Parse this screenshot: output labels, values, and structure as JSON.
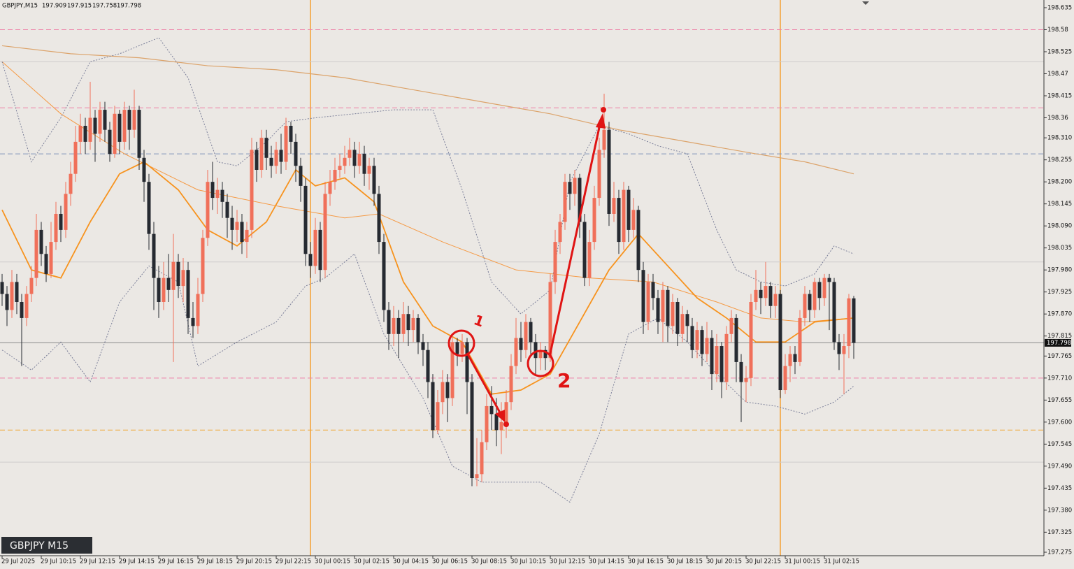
{
  "chart_data": {
    "type": "candlestick",
    "symbol": "GBPJPY,M15",
    "badge": "GBPJPY M15",
    "up_color": "#f0705a",
    "down_color": "#262a31",
    "ylim": [
      197.275,
      198.635
    ],
    "yticks": [
      198.635,
      198.58,
      198.525,
      198.47,
      198.415,
      198.36,
      {
        "value": 198.31,
        "label": "198.310"
      },
      198.255,
      {
        "value": 198.2,
        "label": "198.200"
      },
      198.145,
      {
        "value": 198.09,
        "label": "198.090"
      },
      198.035,
      {
        "value": 197.98,
        "label": "197.980"
      },
      197.925,
      {
        "value": 197.87,
        "label": "197.870"
      },
      197.815,
      197.765,
      {
        "value": 197.71,
        "label": "197.710"
      },
      197.655,
      {
        "value": 197.6,
        "label": "197.600"
      },
      197.545,
      {
        "value": 197.49,
        "label": "197.490"
      },
      197.435,
      {
        "value": 197.38,
        "label": "197.380"
      },
      197.325,
      197.275
    ],
    "grid": false,
    "period_separators": true,
    "separator_color": "#f5a033",
    "categories": [
      "29 Jul 2025",
      null,
      null,
      null,
      null,
      null,
      null,
      null,
      "29 Jul 10:15",
      null,
      null,
      null,
      null,
      null,
      null,
      null,
      "29 Jul 12:15",
      null,
      null,
      null,
      null,
      null,
      null,
      null,
      "29 Jul 14:15",
      null,
      null,
      null,
      null,
      null,
      null,
      null,
      "29 Jul 16:15",
      null,
      null,
      null,
      null,
      null,
      null,
      null,
      "29 Jul 18:15",
      null,
      null,
      null,
      null,
      null,
      null,
      null,
      "29 Jul 20:15",
      null,
      null,
      null,
      null,
      null,
      null,
      null,
      "29 Jul 22:15",
      null,
      null,
      null,
      null,
      null,
      null,
      null,
      "30 Jul 00:15",
      null,
      null,
      null,
      null,
      null,
      null,
      null,
      "30 Jul 02:15",
      null,
      null,
      null,
      null,
      null,
      null,
      null,
      "30 Jul 04:15",
      null,
      null,
      null,
      null,
      null,
      null,
      null,
      "30 Jul 06:15",
      null,
      null,
      null,
      null,
      null,
      null,
      null,
      "30 Jul 08:15",
      null,
      null,
      null,
      null,
      null,
      null,
      null,
      "30 Jul 10:15",
      null,
      null,
      null,
      null,
      null,
      null,
      null,
      "30 Jul 12:15",
      null,
      null,
      null,
      null,
      null,
      null,
      null,
      "30 Jul 14:15",
      null,
      null,
      null,
      null,
      null,
      null,
      null,
      "30 Jul 16:15",
      null,
      null,
      null,
      null,
      null,
      null,
      null,
      "30 Jul 18:15",
      null,
      null,
      null,
      null,
      null,
      null,
      null,
      "30 Jul 20:15",
      null,
      null,
      null,
      null,
      null,
      null,
      null,
      "30 Jul 22:15",
      null,
      null,
      null,
      null,
      null,
      null,
      null,
      "31 Jul 00:15",
      null,
      null,
      null,
      null,
      null,
      null,
      null,
      "31 Jul 02:15",
      null,
      null,
      null,
      null,
      null,
      null
    ],
    "open": [
      197.95,
      197.92,
      197.88,
      197.95,
      197.9,
      197.86,
      197.92,
      197.96,
      198.08,
      198.02,
      197.97,
      198.05,
      198.12,
      198.08,
      198.17,
      198.22,
      198.3,
      198.34,
      198.3,
      198.36,
      198.32,
      198.38,
      198.33,
      198.27,
      198.37,
      198.3,
      198.38,
      198.33,
      198.38,
      198.26,
      198.2,
      198.07,
      197.96,
      197.9,
      197.96,
      197.93,
      198.0,
      197.94,
      197.98,
      197.86,
      197.84,
      197.92,
      198.06,
      198.2,
      198.16,
      198.18,
      198.15,
      198.11,
      198.08,
      198.1,
      198.05,
      198.08,
      198.28,
      198.23,
      198.31,
      198.26,
      198.24,
      198.28,
      198.25,
      198.34,
      198.3,
      198.24,
      198.19,
      198.02,
      197.99,
      198.08,
      197.98,
      198.17,
      198.2,
      198.23,
      198.24,
      198.26,
      198.28,
      198.24,
      198.27,
      198.22,
      198.24,
      198.17,
      198.05,
      197.88,
      197.82,
      197.86,
      197.82,
      197.87,
      197.83,
      197.86,
      197.8,
      197.78,
      197.7,
      197.58,
      197.65,
      197.7,
      197.66,
      197.8,
      197.77,
      197.8,
      197.7,
      197.46,
      197.47,
      197.55,
      197.64,
      197.62,
      197.58,
      197.6,
      197.65,
      197.74,
      197.81,
      197.78,
      197.85,
      197.8,
      197.76,
      197.78,
      197.76,
      197.95,
      198.05,
      198.1,
      198.2,
      198.17,
      198.21,
      198.1,
      197.96,
      198.05,
      198.16,
      198.28,
      198.33,
      198.12,
      198.16,
      198.05,
      198.18,
      198.08,
      198.13,
      197.98,
      197.85,
      197.95,
      197.91,
      197.85,
      197.93,
      197.84,
      197.9,
      197.82,
      197.87,
      197.84,
      197.78,
      197.83,
      197.77,
      197.81,
      197.72,
      197.79,
      197.7,
      197.82,
      197.86,
      197.75,
      197.7,
      197.71,
      197.9,
      197.93,
      197.91,
      197.94,
      197.89,
      197.92,
      197.68,
      197.74,
      197.77,
      197.75,
      197.86,
      197.92,
      197.88,
      197.95,
      197.91,
      197.96,
      197.95,
      197.8,
      197.77,
      197.79,
      197.909
    ],
    "high": [
      197.97,
      197.94,
      197.98,
      197.97,
      197.92,
      197.94,
      197.99,
      198.12,
      198.1,
      198.04,
      198.1,
      198.15,
      198.14,
      198.2,
      198.25,
      198.34,
      198.37,
      198.36,
      198.45,
      198.38,
      198.4,
      198.4,
      198.35,
      198.39,
      198.38,
      198.4,
      198.39,
      198.43,
      198.39,
      198.28,
      198.22,
      198.1,
      197.99,
      198.0,
      198.02,
      198.07,
      198.02,
      198.01,
      198.0,
      197.9,
      197.96,
      198.08,
      198.23,
      198.25,
      198.21,
      198.2,
      198.17,
      198.14,
      198.13,
      198.12,
      198.1,
      198.31,
      198.3,
      198.33,
      198.33,
      198.29,
      198.3,
      198.32,
      198.36,
      198.35,
      198.32,
      198.26,
      198.21,
      198.05,
      198.11,
      198.1,
      198.2,
      198.23,
      198.26,
      198.27,
      198.29,
      198.31,
      198.3,
      198.3,
      198.29,
      198.26,
      198.26,
      198.19,
      198.07,
      197.9,
      197.89,
      197.88,
      197.9,
      197.89,
      197.88,
      197.87,
      197.82,
      197.8,
      197.72,
      197.68,
      197.73,
      197.72,
      197.82,
      197.81,
      197.82,
      197.81,
      197.72,
      197.56,
      197.58,
      197.67,
      197.69,
      197.66,
      197.65,
      197.68,
      197.77,
      197.86,
      197.85,
      197.87,
      197.86,
      197.82,
      197.8,
      197.79,
      197.97,
      198.08,
      198.12,
      198.22,
      198.22,
      198.23,
      198.22,
      198.12,
      198.08,
      198.19,
      198.31,
      198.42,
      198.35,
      198.2,
      198.18,
      198.2,
      198.19,
      198.16,
      198.14,
      198.0,
      197.97,
      197.97,
      197.93,
      197.95,
      197.94,
      197.92,
      197.91,
      197.89,
      197.88,
      197.86,
      197.85,
      197.84,
      197.85,
      197.83,
      197.82,
      197.8,
      197.84,
      197.88,
      197.87,
      197.77,
      197.74,
      197.92,
      197.98,
      197.95,
      198.0,
      197.95,
      197.94,
      197.93,
      197.77,
      197.79,
      197.79,
      197.88,
      197.94,
      197.93,
      197.96,
      197.96,
      197.97,
      197.97,
      197.96,
      197.82,
      197.82,
      197.92,
      197.915
    ],
    "low": [
      197.89,
      197.84,
      197.86,
      197.87,
      197.74,
      197.84,
      197.9,
      197.94,
      197.99,
      197.95,
      197.96,
      198.03,
      198.05,
      198.06,
      198.14,
      198.2,
      198.27,
      198.27,
      198.28,
      198.25,
      198.3,
      198.3,
      198.25,
      198.26,
      198.27,
      198.28,
      198.28,
      198.31,
      198.23,
      198.15,
      198.03,
      197.88,
      197.86,
      197.88,
      197.9,
      197.75,
      197.91,
      197.9,
      197.82,
      197.81,
      197.82,
      197.9,
      198.04,
      198.13,
      198.12,
      198.11,
      198.06,
      198.03,
      198.05,
      198.02,
      198.01,
      198.06,
      198.2,
      198.21,
      198.23,
      198.21,
      198.22,
      198.22,
      198.23,
      198.27,
      198.2,
      198.15,
      197.99,
      197.96,
      197.97,
      197.95,
      197.96,
      198.14,
      198.18,
      198.21,
      198.22,
      198.24,
      198.21,
      198.22,
      198.19,
      198.18,
      198.14,
      198.02,
      197.85,
      197.78,
      197.79,
      197.76,
      197.8,
      197.79,
      197.8,
      197.77,
      197.74,
      197.66,
      197.56,
      197.57,
      197.62,
      197.6,
      197.64,
      197.74,
      197.75,
      197.62,
      197.44,
      197.44,
      197.45,
      197.53,
      197.58,
      197.54,
      197.52,
      197.56,
      197.63,
      197.72,
      197.75,
      197.76,
      197.77,
      197.72,
      197.73,
      197.73,
      197.75,
      197.92,
      198.02,
      198.08,
      198.13,
      198.14,
      198.06,
      197.94,
      197.94,
      198.03,
      198.14,
      198.26,
      198.09,
      198.1,
      198.02,
      198.03,
      198.05,
      198.06,
      197.95,
      197.82,
      197.83,
      197.88,
      197.82,
      197.8,
      197.8,
      197.82,
      197.79,
      197.8,
      197.8,
      197.76,
      197.76,
      197.74,
      197.75,
      197.68,
      197.7,
      197.66,
      197.68,
      197.8,
      197.7,
      197.6,
      197.65,
      197.69,
      197.88,
      197.87,
      197.89,
      197.86,
      197.86,
      197.66,
      197.67,
      197.7,
      197.72,
      197.74,
      197.84,
      197.85,
      197.86,
      197.88,
      197.89,
      197.83,
      197.78,
      197.73,
      197.67,
      197.76,
      197.758
    ],
    "close": [
      197.92,
      197.88,
      197.95,
      197.9,
      197.86,
      197.92,
      197.96,
      198.08,
      198.02,
      197.97,
      198.05,
      198.12,
      198.08,
      198.17,
      198.22,
      198.3,
      198.34,
      198.3,
      198.36,
      198.32,
      198.38,
      198.33,
      198.27,
      198.37,
      198.3,
      198.38,
      198.33,
      198.38,
      198.26,
      198.2,
      198.07,
      197.96,
      197.9,
      197.96,
      197.93,
      198.0,
      197.94,
      197.98,
      197.86,
      197.84,
      197.92,
      198.06,
      198.2,
      198.16,
      198.18,
      198.15,
      198.11,
      198.08,
      198.1,
      198.05,
      198.08,
      198.28,
      198.23,
      198.31,
      198.26,
      198.24,
      198.28,
      198.25,
      198.34,
      198.3,
      198.24,
      198.19,
      198.02,
      197.99,
      198.08,
      197.98,
      198.17,
      198.2,
      198.23,
      198.24,
      198.26,
      198.28,
      198.24,
      198.27,
      198.22,
      198.24,
      198.17,
      198.05,
      197.88,
      197.82,
      197.86,
      197.82,
      197.87,
      197.83,
      197.86,
      197.8,
      197.78,
      197.7,
      197.58,
      197.65,
      197.7,
      197.66,
      197.8,
      197.77,
      197.8,
      197.7,
      197.46,
      197.47,
      197.55,
      197.64,
      197.62,
      197.58,
      197.6,
      197.65,
      197.74,
      197.81,
      197.78,
      197.85,
      197.8,
      197.76,
      197.78,
      197.76,
      197.95,
      198.05,
      198.1,
      198.2,
      198.17,
      198.21,
      198.1,
      197.96,
      198.05,
      198.16,
      198.28,
      198.33,
      198.12,
      198.16,
      198.05,
      198.18,
      198.08,
      198.13,
      197.98,
      197.85,
      197.95,
      197.91,
      197.85,
      197.93,
      197.84,
      197.9,
      197.82,
      197.87,
      197.84,
      197.78,
      197.83,
      197.77,
      197.81,
      197.72,
      197.79,
      197.7,
      197.82,
      197.86,
      197.75,
      197.7,
      197.71,
      197.9,
      197.93,
      197.91,
      197.94,
      197.89,
      197.92,
      197.68,
      197.74,
      197.77,
      197.75,
      197.86,
      197.92,
      197.88,
      197.95,
      197.91,
      197.96,
      197.95,
      197.8,
      197.77,
      197.79,
      197.909,
      197.798
    ],
    "indicators": [
      {
        "color": "#dca36a",
        "width": 1.2,
        "style": "solid",
        "x": [
          0,
          14,
          28,
          42,
          56,
          70,
          84,
          98,
          112,
          126,
          140,
          154,
          164,
          174
        ],
        "values": [
          198.54,
          198.52,
          198.51,
          198.49,
          198.48,
          198.46,
          198.43,
          198.4,
          198.37,
          198.33,
          198.3,
          198.27,
          198.25,
          198.22
        ]
      },
      {
        "color": "#f59a45",
        "width": 1,
        "style": "solid",
        "x": [
          0,
          12,
          25,
          40,
          56,
          70,
          77,
          90,
          105,
          120,
          133,
          146,
          155,
          164,
          174
        ],
        "values": [
          198.5,
          198.37,
          198.27,
          198.18,
          198.14,
          198.11,
          198.12,
          198.05,
          197.98,
          197.96,
          197.95,
          197.9,
          197.86,
          197.85,
          197.86
        ]
      },
      {
        "color": "#f7931e",
        "width": 1.8,
        "style": "solid",
        "x": [
          0,
          6,
          12,
          18,
          24,
          29,
          36,
          42,
          48,
          54,
          60,
          64,
          70,
          76,
          82,
          88,
          94,
          100,
          106,
          112,
          118,
          124,
          130,
          136,
          142,
          148,
          154,
          160,
          166,
          174
        ],
        "values": [
          198.13,
          197.98,
          197.96,
          198.1,
          198.22,
          198.25,
          198.18,
          198.08,
          198.04,
          198.1,
          198.23,
          198.19,
          198.21,
          198.15,
          197.95,
          197.84,
          197.8,
          197.67,
          197.68,
          197.72,
          197.85,
          197.98,
          198.07,
          197.99,
          197.91,
          197.86,
          197.8,
          197.8,
          197.85,
          197.86
        ]
      },
      {
        "color": "#7b7f99",
        "width": 1,
        "style": "dotted",
        "x": [
          0,
          6,
          12,
          18,
          24,
          32,
          38,
          44,
          48,
          54,
          58,
          64,
          72,
          80,
          88,
          94,
          100,
          106,
          112,
          116,
          122,
          128,
          134,
          140,
          146,
          150,
          155,
          160,
          166,
          170,
          174
        ],
        "values": [
          198.5,
          198.25,
          198.36,
          198.5,
          198.52,
          198.56,
          198.46,
          198.25,
          198.24,
          198.3,
          198.35,
          198.36,
          198.37,
          198.38,
          198.38,
          198.18,
          197.95,
          197.87,
          197.93,
          198.2,
          198.34,
          198.32,
          198.29,
          198.27,
          198.08,
          197.98,
          197.95,
          197.94,
          197.97,
          198.04,
          198.02
        ]
      },
      {
        "color": "#7b7f99",
        "width": 1,
        "style": "dotted",
        "x": [
          0,
          6,
          12,
          18,
          24,
          30,
          36,
          40,
          48,
          56,
          62,
          66,
          72,
          78,
          86,
          92,
          98,
          104,
          110,
          116,
          122,
          128,
          134,
          140,
          146,
          152,
          158,
          164,
          170,
          174
        ],
        "values": [
          197.78,
          197.73,
          197.8,
          197.7,
          197.9,
          197.99,
          197.95,
          197.74,
          197.8,
          197.85,
          197.94,
          197.96,
          198.02,
          197.82,
          197.66,
          197.49,
          197.45,
          197.45,
          197.45,
          197.4,
          197.57,
          197.82,
          197.86,
          197.8,
          197.72,
          197.65,
          197.64,
          197.62,
          197.65,
          197.69
        ]
      }
    ],
    "levels": [
      {
        "value": 198.58,
        "color": "#ee7fa6",
        "style": "dashed"
      },
      {
        "value": 198.385,
        "color": "#ee7fa6",
        "style": "dashed"
      },
      {
        "value": 198.27,
        "color": "#7f93b8",
        "style": "dashed"
      },
      {
        "value": 197.71,
        "color": "#ee7fa6",
        "style": "dashed"
      },
      {
        "value": 197.58,
        "color": "#f0a838",
        "style": "dashed"
      },
      {
        "value": 198.5,
        "color": "#cfcccc",
        "style": "solid"
      },
      {
        "value": 198.0,
        "color": "#cfcccc",
        "style": "solid"
      },
      {
        "value": 197.5,
        "color": "#cfcccc",
        "style": "solid"
      }
    ],
    "annotations": [
      "1",
      "2"
    ]
  }
}
